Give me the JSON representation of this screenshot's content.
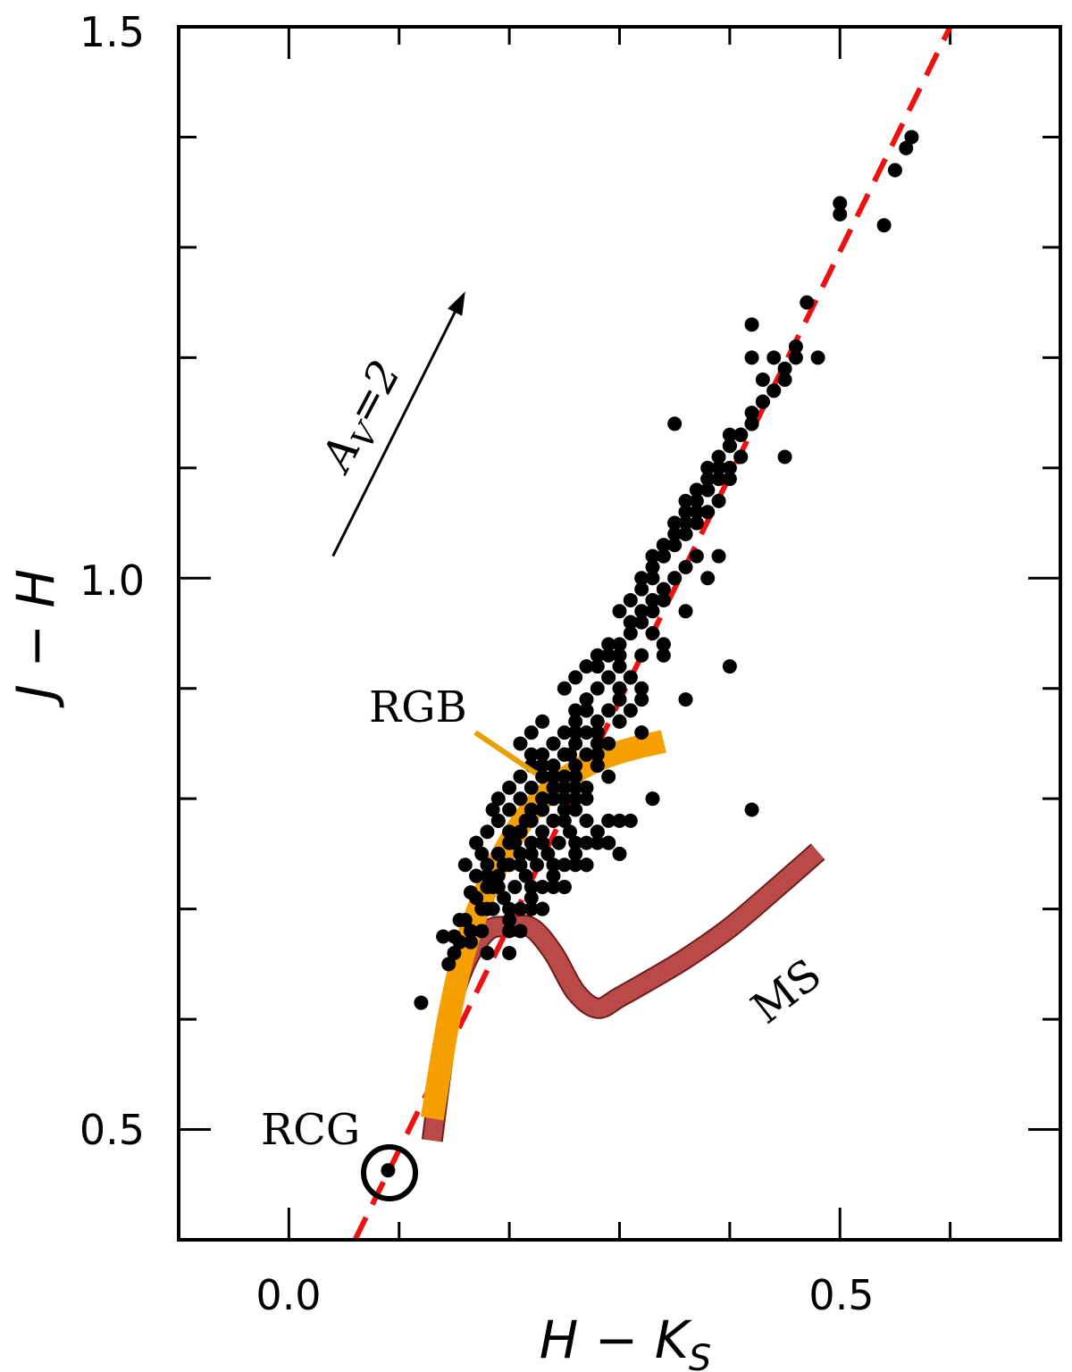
{
  "chart_data": {
    "type": "scatter",
    "xlabel": {
      "main": "H − K",
      "sub": "S"
    },
    "ylabel": "J − H",
    "xlim": [
      -0.1,
      0.7
    ],
    "ylim": [
      0.4,
      1.5
    ],
    "x_major_ticks": [
      0.0,
      0.5
    ],
    "x_major_tick_labels": [
      "0.0",
      "0.5"
    ],
    "x_minor_ticks": [
      0.1,
      0.2,
      0.3,
      0.4,
      0.6
    ],
    "y_major_ticks": [
      0.5,
      1.0,
      1.5
    ],
    "y_major_tick_labels": [
      "0.5",
      "1.0",
      "1.5"
    ],
    "y_minor_ticks": [
      0.6,
      0.7,
      0.8,
      0.9,
      1.1,
      1.2,
      1.3,
      1.4
    ],
    "colors": {
      "points": "#000000",
      "reddening_line": "#ee1111",
      "rgb": "#f5a000",
      "rgb_pointer": "#e8a000",
      "ms_fill": "#b94a48",
      "arrow": "#000000"
    },
    "reddening_line": {
      "x": [
        0.06,
        0.6
      ],
      "y": [
        0.4,
        1.5
      ],
      "style": "dashed"
    },
    "reddening_vector": {
      "label": "A",
      "label_sub": "V",
      "label_rest": "=2",
      "from": [
        0.04,
        1.02
      ],
      "to": [
        0.16,
        1.26
      ]
    },
    "rcg": {
      "label": "RCG",
      "x": 0.09,
      "y": 0.463
    },
    "rgb_track": {
      "label": "RGB",
      "x": [
        0.13,
        0.145,
        0.16,
        0.18,
        0.2,
        0.22,
        0.25,
        0.28,
        0.31,
        0.34
      ],
      "y": [
        0.51,
        0.6,
        0.665,
        0.72,
        0.76,
        0.79,
        0.818,
        0.835,
        0.845,
        0.852
      ]
    },
    "ms_track": {
      "label": "MS",
      "x": [
        0.13,
        0.145,
        0.16,
        0.18,
        0.2,
        0.22,
        0.24,
        0.26,
        0.28,
        0.3,
        0.33,
        0.36,
        0.4,
        0.44,
        0.48
      ],
      "y": [
        0.49,
        0.6,
        0.65,
        0.68,
        0.684,
        0.683,
        0.66,
        0.625,
        0.61,
        0.62,
        0.637,
        0.655,
        0.683,
        0.717,
        0.752
      ]
    },
    "points": {
      "x": [
        0.09,
        0.12,
        0.14,
        0.15,
        0.155,
        0.165,
        0.17,
        0.175,
        0.18,
        0.185,
        0.19,
        0.2,
        0.21,
        0.22,
        0.23,
        0.24,
        0.25,
        0.26,
        0.27,
        0.28,
        0.165,
        0.175,
        0.185,
        0.195,
        0.205,
        0.215,
        0.225,
        0.235,
        0.245,
        0.255,
        0.17,
        0.18,
        0.19,
        0.2,
        0.21,
        0.22,
        0.23,
        0.24,
        0.25,
        0.26,
        0.18,
        0.19,
        0.2,
        0.21,
        0.22,
        0.23,
        0.24,
        0.25,
        0.26,
        0.27,
        0.19,
        0.2,
        0.21,
        0.22,
        0.23,
        0.24,
        0.25,
        0.26,
        0.27,
        0.28,
        0.2,
        0.21,
        0.22,
        0.23,
        0.24,
        0.25,
        0.26,
        0.27,
        0.28,
        0.29,
        0.21,
        0.22,
        0.23,
        0.24,
        0.25,
        0.26,
        0.27,
        0.28,
        0.29,
        0.3,
        0.22,
        0.23,
        0.24,
        0.25,
        0.26,
        0.27,
        0.28,
        0.29,
        0.3,
        0.31,
        0.25,
        0.26,
        0.27,
        0.28,
        0.29,
        0.3,
        0.31,
        0.32,
        0.33,
        0.34,
        0.26,
        0.27,
        0.28,
        0.29,
        0.3,
        0.31,
        0.32,
        0.33,
        0.34,
        0.35,
        0.28,
        0.29,
        0.3,
        0.31,
        0.32,
        0.33,
        0.34,
        0.35,
        0.36,
        0.37,
        0.3,
        0.31,
        0.32,
        0.33,
        0.34,
        0.35,
        0.36,
        0.37,
        0.38,
        0.39,
        0.32,
        0.33,
        0.34,
        0.35,
        0.36,
        0.37,
        0.38,
        0.39,
        0.4,
        0.41,
        0.33,
        0.34,
        0.35,
        0.36,
        0.37,
        0.38,
        0.39,
        0.4,
        0.41,
        0.42,
        0.35,
        0.36,
        0.37,
        0.38,
        0.39,
        0.4,
        0.41,
        0.42,
        0.43,
        0.44,
        0.36,
        0.37,
        0.38,
        0.39,
        0.4,
        0.41,
        0.42,
        0.43,
        0.44,
        0.45,
        0.19,
        0.21,
        0.23,
        0.25,
        0.27,
        0.29,
        0.2,
        0.22,
        0.24,
        0.26,
        0.18,
        0.2,
        0.22,
        0.24,
        0.26,
        0.28,
        0.3,
        0.21,
        0.23,
        0.25,
        0.27,
        0.29,
        0.31,
        0.33,
        0.2,
        0.24,
        0.28,
        0.32,
        0.36,
        0.4,
        0.22,
        0.24,
        0.26,
        0.28,
        0.3,
        0.32,
        0.34,
        0.23,
        0.25,
        0.27,
        0.29,
        0.31,
        0.34,
        0.36,
        0.38,
        0.42,
        0.38,
        0.4,
        0.43,
        0.45,
        0.44,
        0.46,
        0.47,
        0.43,
        0.42,
        0.5,
        0.5,
        0.54,
        0.55,
        0.56,
        0.565,
        0.41,
        0.39,
        0.37,
        0.35,
        0.4,
        0.45,
        0.42,
        0.46,
        0.48,
        0.38,
        0.36,
        0.34,
        0.33,
        0.31,
        0.3,
        0.29,
        0.27,
        0.26,
        0.255,
        0.24,
        0.23,
        0.215,
        0.205,
        0.195,
        0.185,
        0.175,
        0.165,
        0.155,
        0.15,
        0.145,
        0.16,
        0.17,
        0.18,
        0.19,
        0.21,
        0.22,
        0.24,
        0.26,
        0.28,
        0.3,
        0.32,
        0.2,
        0.18,
        0.16,
        0.17,
        0.19,
        0.23,
        0.25,
        0.27
      ],
      "y": [
        0.463,
        0.615,
        0.675,
        0.675,
        0.69,
        0.715,
        0.73,
        0.75,
        0.77,
        0.79,
        0.8,
        0.81,
        0.82,
        0.83,
        0.84,
        0.85,
        0.86,
        0.86,
        0.84,
        0.83,
        0.67,
        0.68,
        0.7,
        0.71,
        0.72,
        0.73,
        0.74,
        0.75,
        0.76,
        0.77,
        0.73,
        0.74,
        0.75,
        0.76,
        0.77,
        0.78,
        0.79,
        0.8,
        0.81,
        0.82,
        0.72,
        0.73,
        0.74,
        0.75,
        0.76,
        0.77,
        0.78,
        0.79,
        0.8,
        0.81,
        0.78,
        0.79,
        0.8,
        0.81,
        0.82,
        0.83,
        0.84,
        0.85,
        0.86,
        0.87,
        0.69,
        0.7,
        0.71,
        0.72,
        0.73,
        0.74,
        0.75,
        0.76,
        0.77,
        0.78,
        0.85,
        0.84,
        0.83,
        0.82,
        0.8,
        0.79,
        0.78,
        0.77,
        0.76,
        0.75,
        0.86,
        0.87,
        0.85,
        0.84,
        0.88,
        0.89,
        0.9,
        0.91,
        0.89,
        0.88,
        0.9,
        0.91,
        0.92,
        0.93,
        0.94,
        0.92,
        0.91,
        0.93,
        0.95,
        0.94,
        0.87,
        0.88,
        0.86,
        0.85,
        0.9,
        0.96,
        0.97,
        0.98,
        0.99,
        1.0,
        0.92,
        0.93,
        0.94,
        0.95,
        0.96,
        0.97,
        0.98,
        1.0,
        1.01,
        1.02,
        0.97,
        0.98,
        0.99,
        1.0,
        1.02,
        1.03,
        1.04,
        1.05,
        1.06,
        1.07,
        1.0,
        1.01,
        1.03,
        1.04,
        1.05,
        1.06,
        1.08,
        1.09,
        1.1,
        1.11,
        1.02,
        1.03,
        1.05,
        1.06,
        1.07,
        1.08,
        1.1,
        1.12,
        1.13,
        1.14,
        1.05,
        1.07,
        1.08,
        1.09,
        1.11,
        1.12,
        1.13,
        1.15,
        1.16,
        1.17,
        1.06,
        1.08,
        1.09,
        1.1,
        1.12,
        1.13,
        1.14,
        1.16,
        1.17,
        1.18,
        0.72,
        0.74,
        0.76,
        0.78,
        0.8,
        0.82,
        0.7,
        0.72,
        0.74,
        0.76,
        0.66,
        0.68,
        0.7,
        0.72,
        0.74,
        0.76,
        0.78,
        0.68,
        0.7,
        0.72,
        0.74,
        0.76,
        0.78,
        0.8,
        0.77,
        0.8,
        0.83,
        0.86,
        0.89,
        0.92,
        0.75,
        0.78,
        0.81,
        0.84,
        0.87,
        0.9,
        0.93,
        0.7,
        0.72,
        0.74,
        0.88,
        0.91,
        0.94,
        0.97,
        1.0,
        0.79,
        1.1,
        1.13,
        1.16,
        1.19,
        1.2,
        1.21,
        1.25,
        1.18,
        1.23,
        1.33,
        1.34,
        1.32,
        1.37,
        1.39,
        1.4,
        1.11,
        1.02,
        1.05,
        1.14,
        1.09,
        1.11,
        1.2,
        1.2,
        1.2,
        1.08,
        1.04,
        1.02,
        0.98,
        0.96,
        0.93,
        0.91,
        0.88,
        0.86,
        0.84,
        0.82,
        0.8,
        0.78,
        0.76,
        0.74,
        0.72,
        0.7,
        0.68,
        0.67,
        0.66,
        0.65,
        0.69,
        0.71,
        0.73,
        0.75,
        0.77,
        0.79,
        0.81,
        0.83,
        0.85,
        0.87,
        0.89,
        0.66,
        0.7,
        0.74,
        0.76,
        0.78,
        0.8,
        0.82,
        0.84
      ]
    }
  }
}
